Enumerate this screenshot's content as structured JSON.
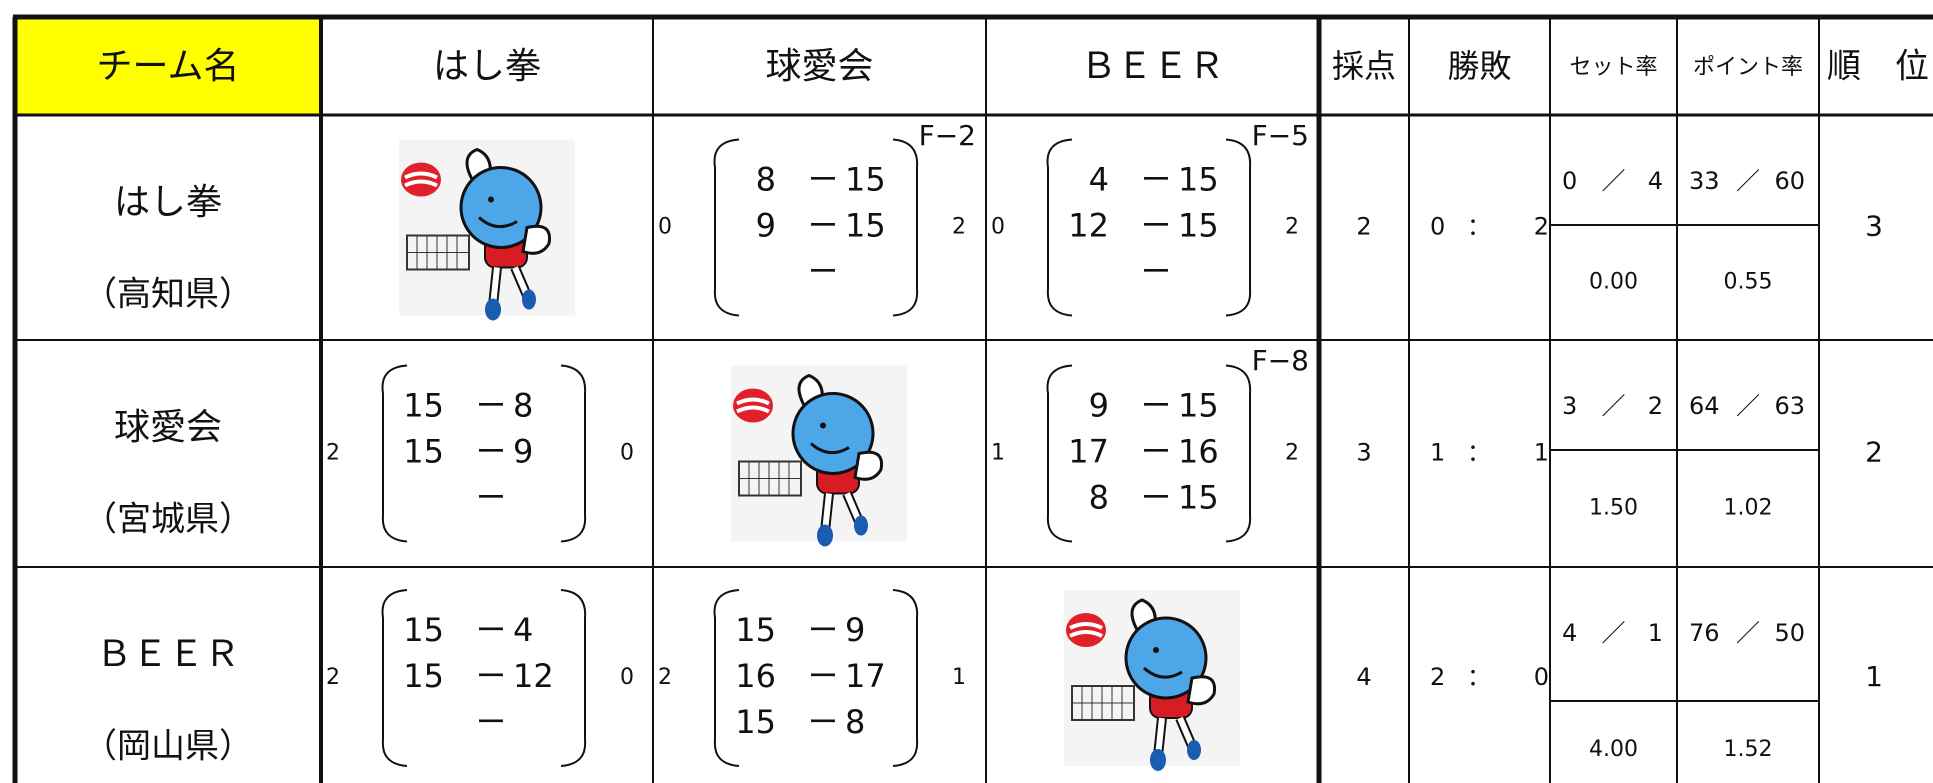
{
  "header": [
    "チーム名",
    "はし拳",
    "球愛会",
    "ＢＥＥＲ",
    "採点",
    "勝敗",
    "セット率",
    "ポイント率",
    "順　位"
  ],
  "rows": [
    {
      "team": "はし拳",
      "pref": "（高知県）",
      "matches": [
        null,
        {
          "left": "0",
          "right": "2",
          "tag": "F−2",
          "sets": [
            {
              "a": "8",
              "dash": "ー",
              "b": "15"
            },
            {
              "a": "9",
              "dash": "ー",
              "b": "15"
            },
            {
              "dash": "ー"
            }
          ]
        },
        {
          "left": "0",
          "right": "2",
          "tag": "F−5",
          "sets": [
            {
              "a": "4",
              "dash": "ー",
              "b": "15"
            },
            {
              "a": "12",
              "dash": "ー",
              "b": "15"
            },
            {
              "dash": "ー"
            }
          ]
        }
      ],
      "score": "2",
      "record": {
        "wins": "0",
        "sep": "：",
        "losses": "2"
      },
      "set_rate": {
        "won": "0",
        "sep": "／",
        "lost": "4",
        "rate": "0.00"
      },
      "point_rate": {
        "won": "33",
        "sep": "／",
        "lost": "60",
        "rate": "0.55"
      },
      "rank": "3"
    },
    {
      "team": "球愛会",
      "pref": "（宮城県）",
      "matches": [
        {
          "left": "2",
          "right": "0",
          "sets": [
            {
              "a": "15",
              "dash": "ー",
              "b": "8"
            },
            {
              "a": "15",
              "dash": "ー",
              "b": "9"
            },
            {
              "dash": "ー"
            }
          ]
        },
        null,
        {
          "left": "1",
          "right": "2",
          "tag": "F−8",
          "sets": [
            {
              "a": "9",
              "dash": "ー",
              "b": "15"
            },
            {
              "a": "17",
              "dash": "ー",
              "b": "16"
            },
            {
              "a": "8",
              "dash": "ー",
              "b": "15"
            }
          ]
        }
      ],
      "score": "3",
      "record": {
        "wins": "1",
        "sep": "：",
        "losses": "1"
      },
      "set_rate": {
        "won": "3",
        "sep": "／",
        "lost": "2",
        "rate": "1.50"
      },
      "point_rate": {
        "won": "64",
        "sep": "／",
        "lost": "63",
        "rate": "1.02"
      },
      "rank": "2"
    },
    {
      "team": "ＢＥＥＲ",
      "pref": "（岡山県）",
      "matches": [
        {
          "left": "2",
          "right": "0",
          "sets": [
            {
              "a": "15",
              "dash": "ー",
              "b": "4"
            },
            {
              "a": "15",
              "dash": "ー",
              "b": "12"
            },
            {
              "dash": "ー"
            }
          ]
        },
        {
          "left": "2",
          "right": "1",
          "sets": [
            {
              "a": "15",
              "dash": "ー",
              "b": "9"
            },
            {
              "a": "16",
              "dash": "ー",
              "b": "17"
            },
            {
              "a": "15",
              "dash": "ー",
              "b": "8"
            }
          ]
        },
        null
      ],
      "score": "4",
      "record": {
        "wins": "2",
        "sep": "：",
        "losses": "0"
      },
      "set_rate": {
        "won": "4",
        "sep": "／",
        "lost": "1",
        "rate": "4.00"
      },
      "point_rate": {
        "won": "76",
        "sep": "／",
        "lost": "50",
        "rate": "1.52"
      },
      "rank": "1"
    }
  ]
}
